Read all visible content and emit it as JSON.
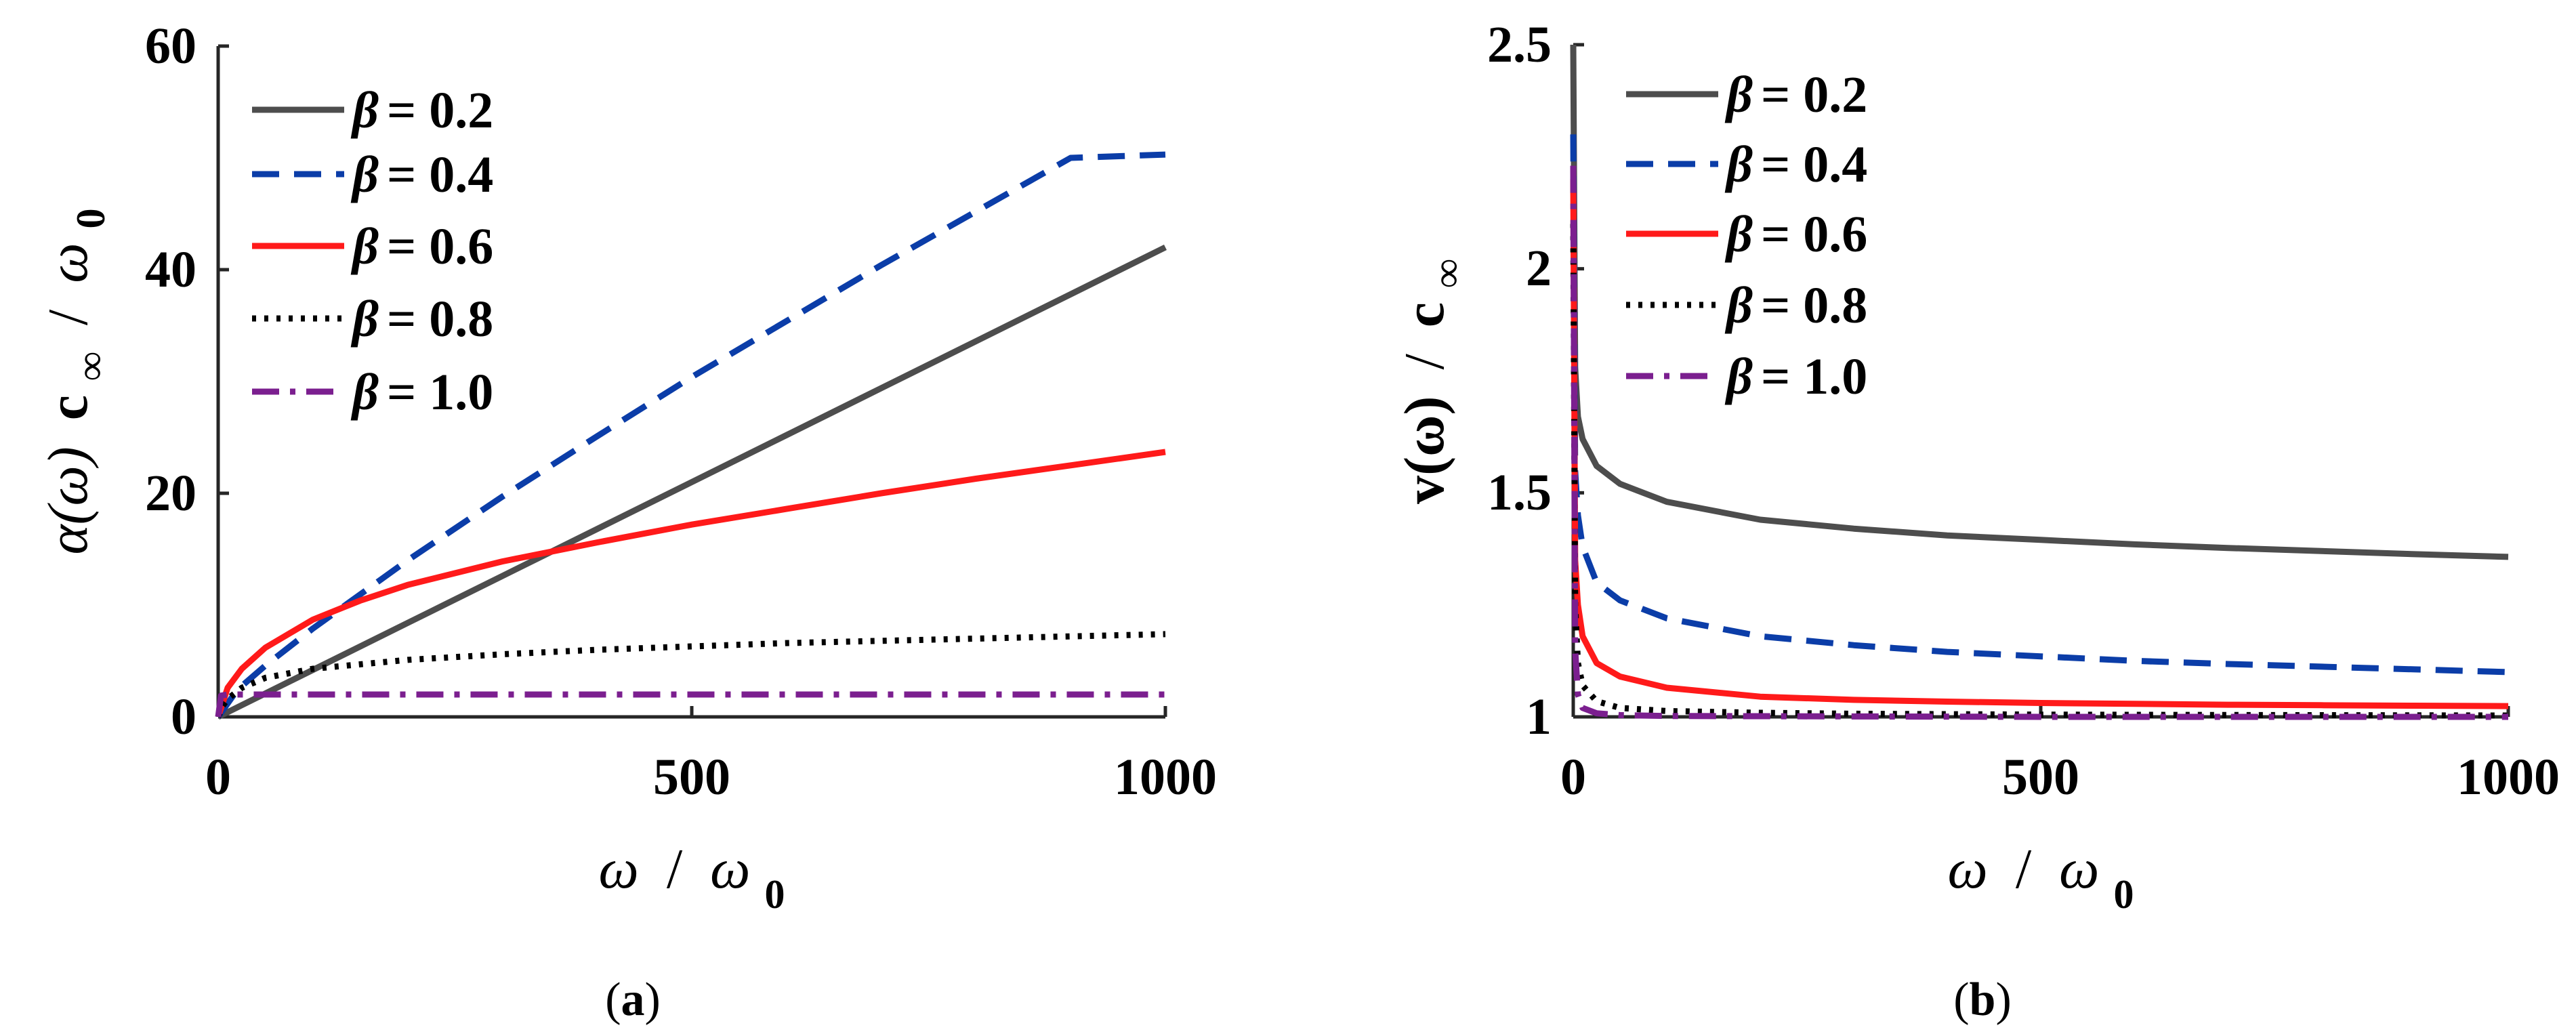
{
  "chart_data": [
    {
      "type": "line",
      "panel_label": "a",
      "xlabel": "ω / ω0",
      "ylabel": "α(ω) c∞ / ω0",
      "xlim": [
        0,
        1000
      ],
      "ylim": [
        0,
        60
      ],
      "xticks": [
        0,
        500,
        1000
      ],
      "yticks": [
        0,
        20,
        40,
        60
      ],
      "legend_position": "top-left",
      "series": [
        {
          "name": "β = 0.2",
          "beta_text": "β",
          "value_text": "= 0.2",
          "color": "#4d4d4d",
          "dash": "solid",
          "x": [
            0,
            100,
            200,
            300,
            400,
            500,
            600,
            700,
            800,
            900,
            1000
          ],
          "y": [
            0,
            4.2,
            8.4,
            12.6,
            16.8,
            21.0,
            25.2,
            29.4,
            33.6,
            37.8,
            42.0
          ]
        },
        {
          "name": "β = 0.4",
          "beta_text": "β",
          "value_text": "= 0.4",
          "color": "#0b3da8",
          "dash": "dashed",
          "x": [
            0,
            20,
            50,
            100,
            200,
            300,
            400,
            500,
            600,
            700,
            800,
            900,
            1000
          ],
          "y": [
            0,
            2.4,
            4.6,
            7.9,
            14.0,
            19.7,
            25.1,
            30.4,
            35.4,
            40.4,
            45.2,
            50.0,
            50.3
          ]
        },
        {
          "name": "β = 0.6",
          "beta_text": "β",
          "value_text": "= 0.6",
          "color": "#ff1a1a",
          "dash": "solid",
          "x": [
            0,
            10,
            25,
            50,
            100,
            150,
            200,
            300,
            400,
            500,
            600,
            700,
            800,
            900,
            1000
          ],
          "y": [
            0,
            2.6,
            4.3,
            6.2,
            8.7,
            10.4,
            11.8,
            13.9,
            15.6,
            17.2,
            18.6,
            20.0,
            21.3,
            22.5,
            23.7
          ]
        },
        {
          "name": "β = 0.8",
          "beta_text": "β",
          "value_text": "= 0.8",
          "color": "#000000",
          "dash": "dotted",
          "x": [
            0,
            5,
            10,
            25,
            50,
            100,
            200,
            300,
            400,
            500,
            600,
            700,
            800,
            900,
            1000
          ],
          "y": [
            0,
            1.0,
            1.6,
            2.6,
            3.5,
            4.3,
            5.1,
            5.6,
            6.0,
            6.3,
            6.6,
            6.8,
            7.0,
            7.2,
            7.4
          ]
        },
        {
          "name": "β = 1.0",
          "beta_text": "β",
          "value_text": "= 1.0",
          "color": "#7b1f8f",
          "dash": "dashdot",
          "x": [
            0,
            3,
            10,
            25,
            100,
            500,
            1000
          ],
          "y": [
            0,
            1.9,
            2.0,
            2.0,
            2.0,
            2.0,
            2.0
          ]
        }
      ]
    },
    {
      "type": "line",
      "panel_label": "b",
      "xlabel": "ω / ω0",
      "ylabel": "v(ω) / c∞",
      "xlim": [
        0,
        1000
      ],
      "ylim": [
        1,
        2.5
      ],
      "xticks": [
        0,
        500,
        1000
      ],
      "yticks": [
        1,
        1.5,
        2,
        2.5
      ],
      "legend_position": "top-left",
      "series": [
        {
          "name": "β = 0.2",
          "beta_text": "β",
          "value_text": "= 0.2",
          "color": "#4d4d4d",
          "dash": "solid",
          "x": [
            0,
            2,
            5,
            10,
            25,
            50,
            100,
            200,
            300,
            400,
            500,
            600,
            700,
            800,
            900,
            1000
          ],
          "y": [
            2.5,
            1.78,
            1.67,
            1.62,
            1.56,
            1.52,
            1.48,
            1.44,
            1.42,
            1.405,
            1.395,
            1.385,
            1.377,
            1.37,
            1.363,
            1.357
          ]
        },
        {
          "name": "β = 0.4",
          "beta_text": "β",
          "value_text": "= 0.4",
          "color": "#0b3da8",
          "dash": "dashed",
          "x": [
            0,
            2,
            5,
            10,
            25,
            50,
            100,
            200,
            300,
            400,
            500,
            600,
            700,
            800,
            900,
            1000
          ],
          "y": [
            2.3,
            1.55,
            1.45,
            1.38,
            1.3,
            1.26,
            1.22,
            1.18,
            1.16,
            1.145,
            1.135,
            1.125,
            1.118,
            1.112,
            1.106,
            1.1
          ]
        },
        {
          "name": "β = 0.6",
          "beta_text": "β",
          "value_text": "= 0.6",
          "color": "#ff1a1a",
          "dash": "solid",
          "x": [
            0,
            2,
            5,
            10,
            25,
            50,
            100,
            200,
            300,
            400,
            500,
            600,
            700,
            800,
            900,
            1000
          ],
          "y": [
            2.2,
            1.35,
            1.25,
            1.18,
            1.12,
            1.09,
            1.065,
            1.045,
            1.038,
            1.034,
            1.031,
            1.029,
            1.027,
            1.026,
            1.025,
            1.024
          ]
        },
        {
          "name": "β = 0.8",
          "beta_text": "β",
          "value_text": "= 0.8",
          "color": "#000000",
          "dash": "dotted",
          "x": [
            0,
            2,
            5,
            10,
            25,
            50,
            100,
            200,
            300,
            500,
            750,
            1000
          ],
          "y": [
            2.1,
            1.25,
            1.12,
            1.07,
            1.035,
            1.02,
            1.013,
            1.009,
            1.007,
            1.005,
            1.004,
            1.003
          ]
        },
        {
          "name": "β = 1.0",
          "beta_text": "β",
          "value_text": "= 1.0",
          "color": "#7b1f8f",
          "dash": "dashdot",
          "x": [
            0,
            2,
            5,
            10,
            25,
            50,
            100,
            500,
            1000
          ],
          "y": [
            2.23,
            1.15,
            1.05,
            1.02,
            1.008,
            1.004,
            1.002,
            1.0,
            1.0
          ]
        }
      ]
    }
  ],
  "panel_a": {
    "y_tick_labels": [
      "0",
      "20",
      "40",
      "60"
    ],
    "x_tick_labels": [
      "0",
      "500",
      "1000"
    ],
    "xlabel": {
      "omega": "ω",
      "slash": "/",
      "omega0": "ω",
      "sub0": "0"
    },
    "ylabel": {
      "alpha_omega": "α(ω)",
      "c": "c",
      "sub_inf": "∞",
      "slash": "/",
      "omega0": "ω",
      "sub0": "0"
    },
    "caption": {
      "open": "(",
      "letter": "a",
      "close": ")"
    }
  },
  "panel_b": {
    "y_tick_labels": [
      "1",
      "1.5",
      "2",
      "2.5"
    ],
    "x_tick_labels": [
      "0",
      "500",
      "1000"
    ],
    "xlabel": {
      "omega": "ω",
      "slash": "/",
      "omega0": "ω",
      "sub0": "0"
    },
    "ylabel": {
      "v_omega": "v(ω)",
      "slash": "/",
      "c": "c",
      "sub_inf": "∞"
    },
    "caption": {
      "open": "(",
      "letter": "b",
      "close": ")"
    }
  }
}
